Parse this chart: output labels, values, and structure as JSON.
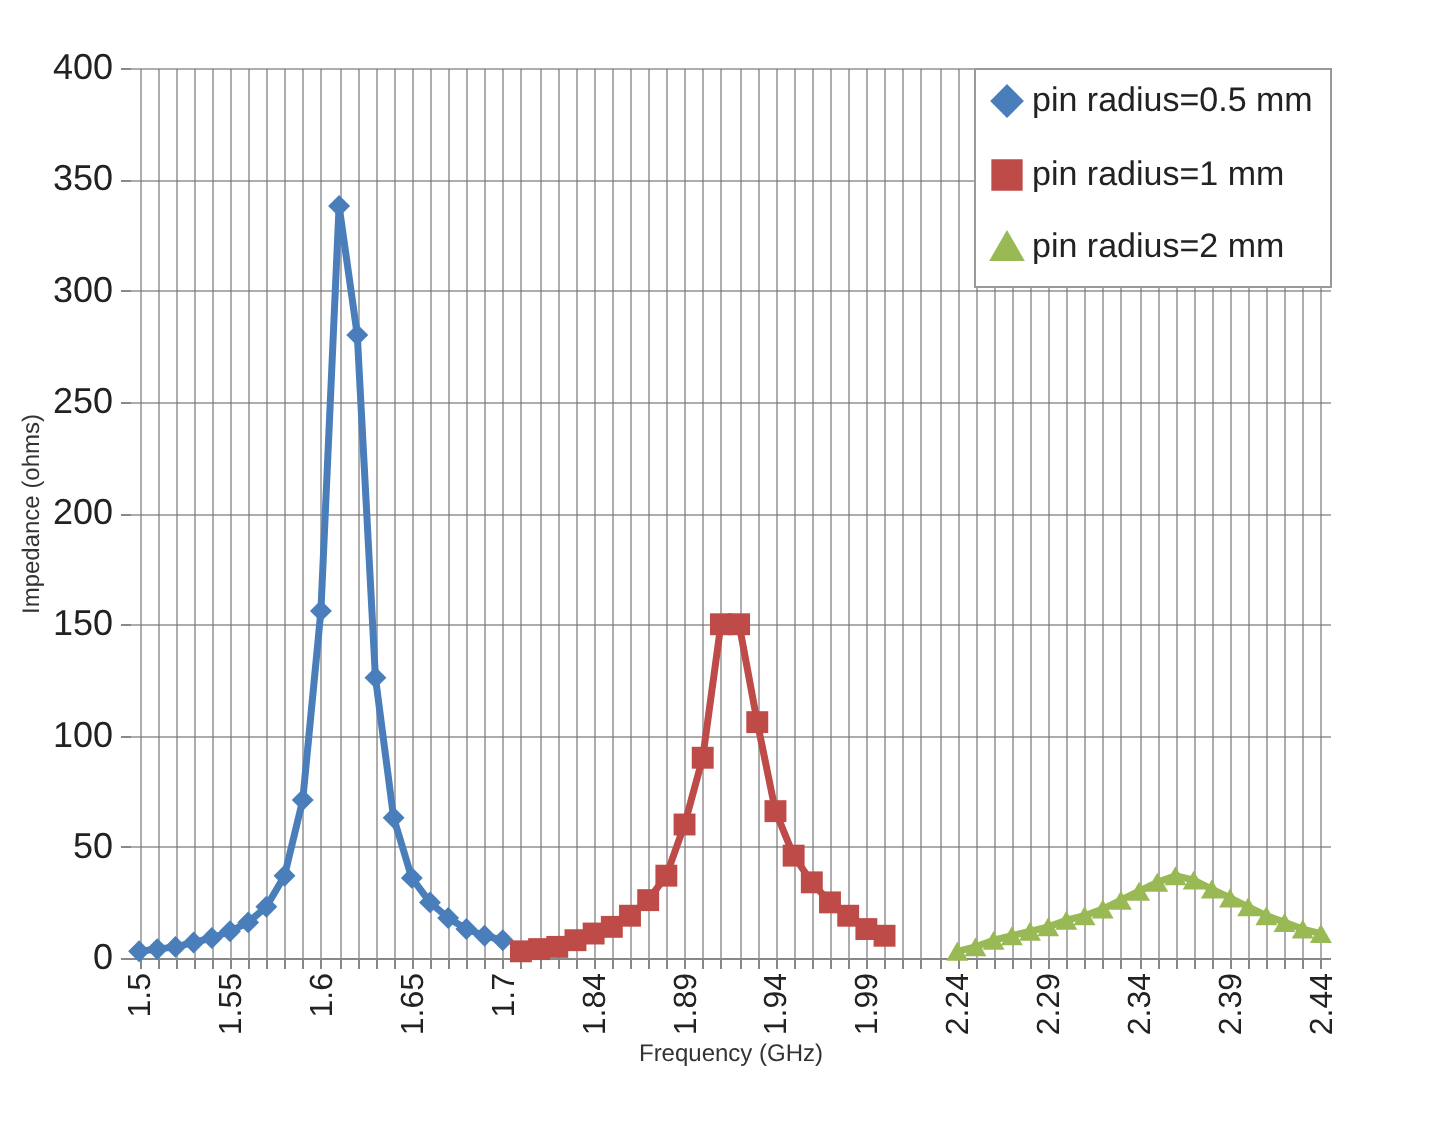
{
  "chart_data": {
    "type": "line",
    "xlabel": "Frequency (GHz)",
    "ylabel": "Impedance (ohms)",
    "categories": [
      "1.5",
      null,
      null,
      null,
      null,
      "1.55",
      null,
      null,
      null,
      null,
      "1.6",
      null,
      null,
      null,
      null,
      "1.65",
      null,
      null,
      null,
      null,
      "1.7",
      null,
      null,
      null,
      null,
      "1.84",
      null,
      null,
      null,
      null,
      "1.89",
      null,
      null,
      null,
      null,
      "1.94",
      null,
      null,
      null,
      null,
      "1.99",
      null,
      null,
      null,
      null,
      "2.24",
      null,
      null,
      null,
      null,
      "2.29",
      null,
      null,
      null,
      null,
      "2.34",
      null,
      null,
      null,
      null,
      "2.39",
      null,
      null,
      null,
      null,
      "2.44"
    ],
    "series": [
      {
        "name": "pin radius=0.5 mm",
        "color": "#4a7ebb",
        "marker": "diamond",
        "values": [
          3,
          4,
          5,
          7,
          9,
          12,
          16,
          23,
          37,
          71,
          156,
          338,
          280,
          126,
          63,
          36,
          25,
          18,
          13,
          10,
          8,
          null,
          null,
          null,
          null,
          null,
          null,
          null,
          null,
          null,
          null,
          null,
          null,
          null,
          null,
          null,
          null,
          null,
          null,
          null,
          null,
          null,
          null,
          null,
          null,
          null,
          null,
          null,
          null,
          null,
          null,
          null,
          null,
          null,
          null,
          null,
          null,
          null,
          null,
          null,
          null,
          null,
          null,
          null,
          null,
          null
        ]
      },
      {
        "name": "pin radius=1 mm",
        "color": "#be4b48",
        "marker": "square",
        "values": [
          null,
          null,
          null,
          null,
          null,
          null,
          null,
          null,
          null,
          null,
          null,
          null,
          null,
          null,
          null,
          null,
          null,
          null,
          null,
          null,
          null,
          3,
          4,
          5,
          8,
          11,
          14,
          19,
          26,
          37,
          60,
          90,
          150,
          150,
          106,
          66,
          46,
          34,
          25,
          19,
          13,
          10,
          null,
          null,
          null,
          null,
          null,
          null,
          null,
          null,
          null,
          null,
          null,
          null,
          null,
          null,
          null,
          null,
          null,
          null,
          null,
          null,
          null,
          null,
          null,
          null
        ]
      },
      {
        "name": "pin radius=2 mm",
        "color": "#98b954",
        "marker": "triangle",
        "values": [
          null,
          null,
          null,
          null,
          null,
          null,
          null,
          null,
          null,
          null,
          null,
          null,
          null,
          null,
          null,
          null,
          null,
          null,
          null,
          null,
          null,
          null,
          null,
          null,
          null,
          null,
          null,
          null,
          null,
          null,
          null,
          null,
          null,
          null,
          null,
          null,
          null,
          null,
          null,
          null,
          null,
          null,
          null,
          null,
          null,
          3,
          5,
          8,
          10,
          12,
          14,
          17,
          19,
          22,
          26,
          30,
          34,
          37,
          35,
          31,
          27,
          23,
          19,
          16,
          13,
          11
        ]
      }
    ],
    "ylim": [
      0,
      400
    ],
    "yticks": [
      0,
      50,
      100,
      150,
      200,
      250,
      300,
      350,
      400
    ],
    "grid": true,
    "legend": "top right",
    "line_style": "solid"
  }
}
